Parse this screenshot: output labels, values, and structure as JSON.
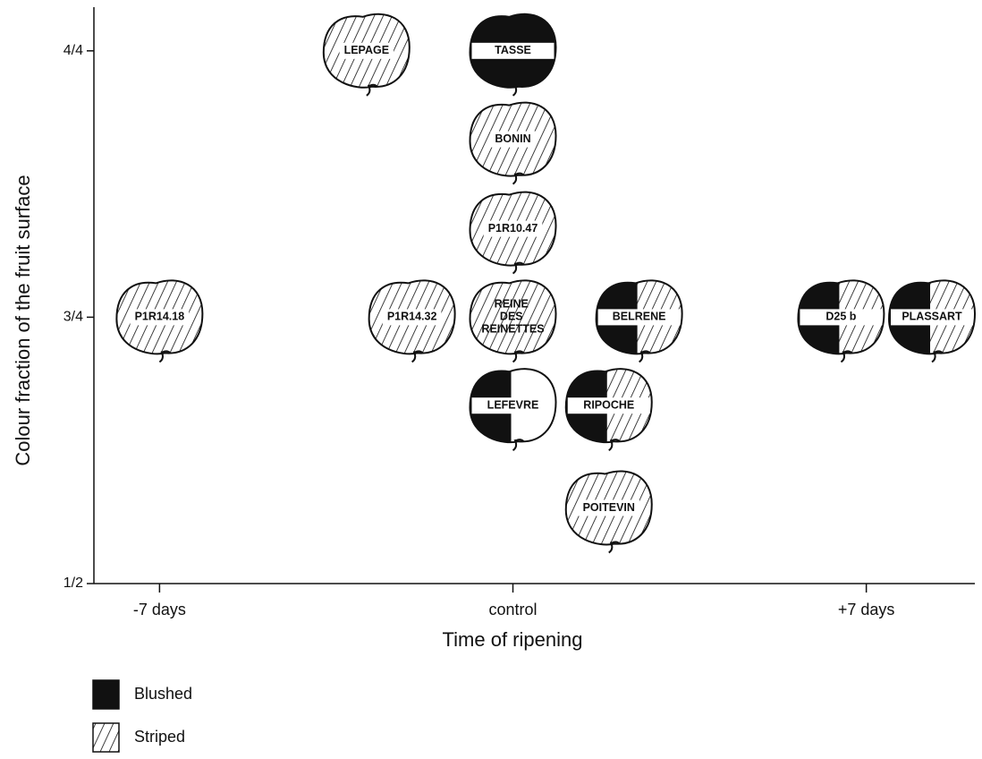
{
  "chart_data": {
    "type": "scatter",
    "x_label": "Time of ripening",
    "y_label": "Colour fraction of the fruit surface",
    "xlim": [
      -8.3,
      9.15
    ],
    "ylim": [
      0.5,
      1.041
    ],
    "xticks": [
      {
        "value": -7,
        "label": "-7 days"
      },
      {
        "value": 0,
        "label": "control"
      },
      {
        "value": 7,
        "label": "+7 days"
      }
    ],
    "yticks": [
      {
        "value": 0.5,
        "label": "1/2"
      },
      {
        "value": 0.75,
        "label": "3/4"
      },
      {
        "value": 1.0,
        "label": "4/4"
      }
    ],
    "points": [
      {
        "label": "LEPAGE",
        "x": -2.9,
        "y": 1.0,
        "style": "striped"
      },
      {
        "label": "TASSE",
        "x": 0,
        "y": 1.0,
        "style": "blushed"
      },
      {
        "label": "BONIN",
        "x": 0,
        "y": 0.917,
        "style": "striped"
      },
      {
        "label": "P1R10.47",
        "x": 0,
        "y": 0.833,
        "style": "striped"
      },
      {
        "label": "P1R14.18",
        "x": -7,
        "y": 0.75,
        "style": "striped"
      },
      {
        "label": "P1R14.32",
        "x": -2,
        "y": 0.75,
        "style": "striped"
      },
      {
        "label": "REINE DES REINETTES",
        "x": 0,
        "y": 0.75,
        "style": "striped"
      },
      {
        "label": "BELRENE",
        "x": 2.5,
        "y": 0.75,
        "style": "blushed-striped"
      },
      {
        "label": "D25 b",
        "x": 6.5,
        "y": 0.75,
        "style": "blushed-striped"
      },
      {
        "label": "PLASSART",
        "x": 8.3,
        "y": 0.75,
        "style": "blushed-striped"
      },
      {
        "label": "LEFEVRE",
        "x": 0,
        "y": 0.667,
        "style": "blushed-plain"
      },
      {
        "label": "RIPOCHE",
        "x": 1.9,
        "y": 0.667,
        "style": "blushed-striped"
      },
      {
        "label": "POITEVIN",
        "x": 1.9,
        "y": 0.571,
        "style": "striped"
      }
    ],
    "legend": [
      {
        "name": "Blushed",
        "style": "blushed"
      },
      {
        "name": "Striped",
        "style": "striped"
      }
    ]
  }
}
